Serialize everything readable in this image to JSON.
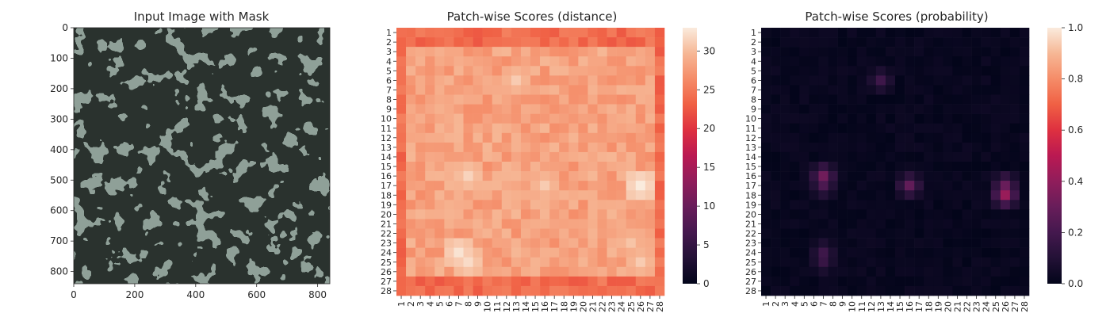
{
  "chart_data": [
    {
      "type": "image",
      "title": "Input Image with Mask",
      "xlim": [
        0,
        840
      ],
      "ylim": [
        840,
        0
      ],
      "x_ticks": [
        "0",
        "200",
        "400",
        "600",
        "800"
      ],
      "y_ticks": [
        "0",
        "100",
        "200",
        "300",
        "400",
        "500",
        "600",
        "700",
        "800"
      ],
      "x_tick_values": [
        0,
        200,
        400,
        600,
        800
      ],
      "y_tick_values": [
        0,
        100,
        200,
        300,
        400,
        500,
        600,
        700,
        800
      ],
      "image_description_colors": {
        "light": "#8fa098",
        "dark": "#2b302d"
      }
    },
    {
      "type": "heatmap",
      "title": "Patch-wise Scores (distance)",
      "rows": 28,
      "cols": 28,
      "x_ticks": [
        "1",
        "2",
        "3",
        "4",
        "5",
        "6",
        "7",
        "8",
        "9",
        "10",
        "11",
        "12",
        "13",
        "14",
        "15",
        "16",
        "17",
        "18",
        "19",
        "20",
        "21",
        "22",
        "23",
        "24",
        "25",
        "26",
        "27",
        "28"
      ],
      "y_ticks": [
        "1",
        "2",
        "3",
        "4",
        "5",
        "6",
        "7",
        "8",
        "9",
        "10",
        "11",
        "12",
        "13",
        "14",
        "15",
        "16",
        "17",
        "18",
        "19",
        "20",
        "21",
        "22",
        "23",
        "24",
        "25",
        "26",
        "27",
        "28"
      ],
      "colorbar": {
        "min": 0,
        "max": 33,
        "ticks": [
          "0",
          "5",
          "10",
          "15",
          "20",
          "25",
          "30"
        ],
        "tick_values": [
          0,
          5,
          10,
          15,
          20,
          25,
          30
        ]
      },
      "colormap": "rocket",
      "summary": {
        "border_value": 24,
        "interior_typical": 28.5,
        "bright_spots": [
          [
            17,
            26,
            33
          ],
          [
            17,
            26,
            32.5
          ],
          [
            24,
            7,
            32.5
          ],
          [
            25,
            8,
            32
          ],
          [
            16,
            8,
            31.5
          ],
          [
            17,
            16,
            31
          ],
          [
            6,
            13,
            31
          ],
          [
            25,
            26,
            31
          ],
          [
            23,
            25,
            30.5
          ]
        ]
      }
    },
    {
      "type": "heatmap",
      "title": "Patch-wise Scores (probability)",
      "rows": 28,
      "cols": 28,
      "x_ticks": [
        "1",
        "2",
        "3",
        "4",
        "5",
        "6",
        "7",
        "8",
        "9",
        "10",
        "11",
        "12",
        "13",
        "14",
        "15",
        "16",
        "17",
        "18",
        "19",
        "20",
        "21",
        "22",
        "23",
        "24",
        "25",
        "26",
        "27",
        "28"
      ],
      "y_ticks": [
        "1",
        "2",
        "3",
        "4",
        "5",
        "6",
        "7",
        "8",
        "9",
        "10",
        "11",
        "12",
        "13",
        "14",
        "15",
        "16",
        "17",
        "18",
        "19",
        "20",
        "21",
        "22",
        "23",
        "24",
        "25",
        "26",
        "27",
        "28"
      ],
      "colorbar": {
        "min": 0.0,
        "max": 1.0,
        "ticks": [
          "0.0",
          "0.2",
          "0.4",
          "0.6",
          "0.8",
          "1.0"
        ],
        "tick_values": [
          0.0,
          0.2,
          0.4,
          0.6,
          0.8,
          1.0
        ]
      },
      "colormap": "rocket",
      "summary": {
        "hot_cells": [
          [
            18,
            26,
            0.42
          ],
          [
            17,
            26,
            0.3
          ],
          [
            16,
            7,
            0.32
          ],
          [
            17,
            16,
            0.28
          ],
          [
            17,
            7,
            0.22
          ],
          [
            6,
            13,
            0.18
          ],
          [
            24,
            7,
            0.18
          ],
          [
            25,
            7,
            0.16
          ]
        ]
      }
    }
  ]
}
